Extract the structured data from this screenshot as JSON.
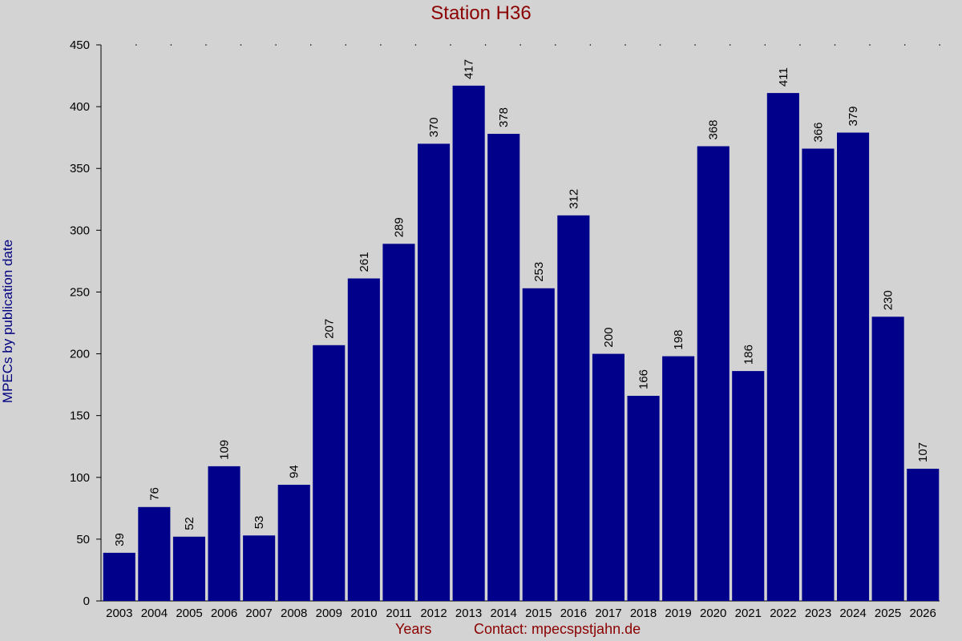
{
  "chart_data": {
    "type": "bar",
    "title": "Station H36",
    "ylabel": "MPECs by publication date",
    "xlabel": "Years",
    "contact": "Contact: mpecspstjahn.de",
    "categories": [
      "2003",
      "2004",
      "2005",
      "2006",
      "2007",
      "2008",
      "2009",
      "2010",
      "2011",
      "2012",
      "2013",
      "2014",
      "2015",
      "2016",
      "2017",
      "2018",
      "2019",
      "2020",
      "2021",
      "2022",
      "2023",
      "2024",
      "2025",
      "2026"
    ],
    "values": [
      39,
      76,
      52,
      109,
      53,
      94,
      207,
      261,
      289,
      370,
      417,
      378,
      253,
      312,
      200,
      166,
      198,
      368,
      186,
      411,
      366,
      379,
      230,
      107
    ],
    "ylim": [
      0,
      450
    ],
    "yticks": [
      0,
      50,
      100,
      150,
      200,
      250,
      300,
      350,
      400,
      450
    ],
    "bar_color": "#00008b",
    "data_labels": true,
    "grid": false
  }
}
